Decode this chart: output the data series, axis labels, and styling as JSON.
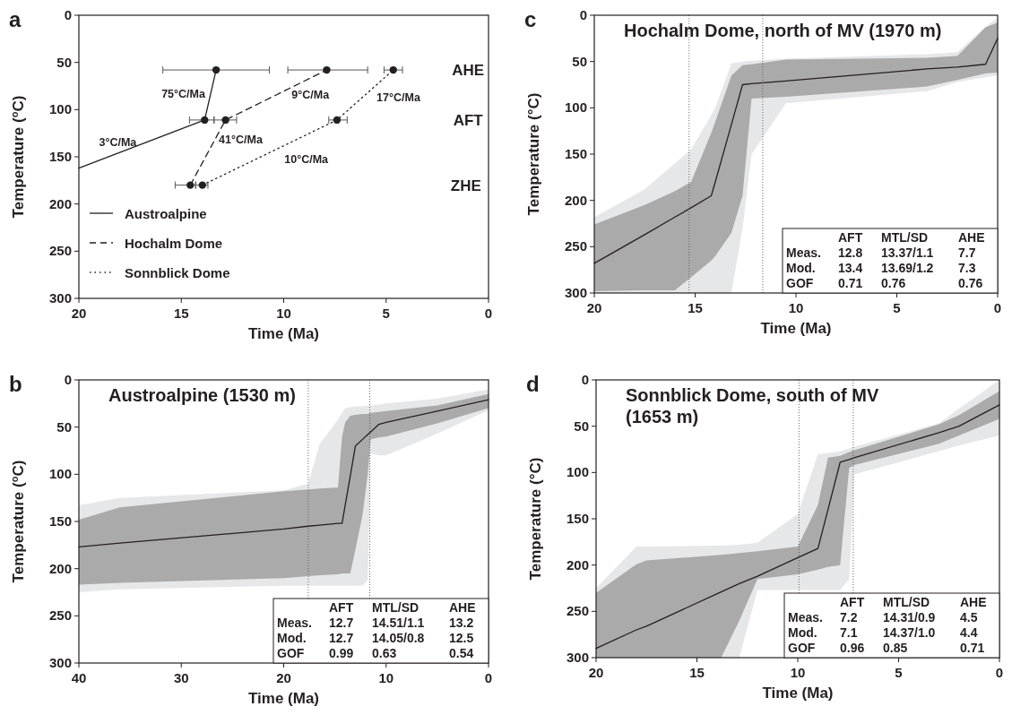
{
  "chart_data": [
    {
      "type": "line",
      "xlabel": "Time (Ma)",
      "ylabel": "Temperature ($^{o}$C)",
      "xlim": [
        20,
        0
      ],
      "ylim": [
        300,
        0
      ],
      "xticks": [
        20,
        15,
        10,
        5,
        0
      ],
      "yticks": [
        0,
        50,
        100,
        150,
        200,
        250,
        300
      ],
      "legend": "bottom left",
      "series": [
        {
          "name": "Austroalpine",
          "type": "line",
          "line_style": "solid",
          "color": "#231f20",
          "x": [
            20,
            13.86,
            13.3
          ],
          "values": [
            162,
            111,
            58
          ]
        },
        {
          "name": "Hochalm Dome",
          "type": "line",
          "line_style": "dashed",
          "color": "#231f20",
          "x": [
            14.56,
            12.84,
            7.9
          ],
          "values": [
            180,
            111,
            58
          ]
        },
        {
          "name": "Sonnblick Dome",
          "type": "line",
          "line_style": "dotted",
          "color": "#231f20",
          "x": [
            13.97,
            7.4,
            4.65
          ],
          "values": [
            180,
            111,
            58
          ]
        },
        {
          "type": "scatter",
          "marker": "circle",
          "color": "#231f20",
          "x": [
            13.3,
            7.9,
            4.65,
            13.86,
            12.84,
            7.4,
            14.56,
            13.97
          ],
          "values": [
            58,
            58,
            58,
            111,
            111,
            111,
            180,
            180
          ],
          "xerrors": [
            [
              10.7,
              15.9
            ],
            [
              5.9,
              9.8
            ],
            [
              4.2,
              5.1
            ],
            [
              13.4,
              14.6
            ],
            [
              12.3,
              13.4
            ],
            [
              6.9,
              7.8
            ],
            [
              14.3,
              15.3
            ],
            [
              13.7,
              14.3
            ]
          ]
        }
      ],
      "annotations": [
        "a",
        "75°C/Ma",
        "9°C/Ma",
        "17°C/Ma",
        "3°C/Ma",
        "41°C/Ma",
        "10°C/Ma",
        "AHE",
        "AFT",
        "ZHE"
      ]
    },
    {
      "type": "line",
      "title": "Hochalm Dome, north of MV (1970 m)",
      "xlabel": "Time (Ma)",
      "ylabel": "Temperature (°C)",
      "xlim": [
        20,
        0
      ],
      "ylim": [
        300,
        0
      ],
      "xticks": [
        20,
        15,
        10,
        5,
        0
      ],
      "yticks": [
        0,
        50,
        100,
        150,
        200,
        250,
        300
      ],
      "x": [
        20,
        17.5,
        16,
        15.2,
        14.2,
        14,
        13.2,
        12.65,
        12.2,
        10.5,
        3.5,
        2,
        0.6,
        0
      ],
      "series": [
        {
          "color": "#e6e7e8",
          "values": [
            null,
            null,
            null,
            null,
            null,
            null,
            null,
            null,
            null,
            null,
            null,
            null,
            null,
            null
          ],
          "lower": [
            218,
            188,
            160,
            145,
            108,
            100,
            52,
            50,
            49,
            47,
            42,
            40,
            12,
            3
          ],
          "upper": [
            300,
            300,
            300,
            300,
            300,
            300,
            300,
            230,
            150,
            95,
            82,
            72,
            67,
            65
          ]
        },
        {
          "color": "#231f20",
          "values": [
            268,
            237,
            218,
            208,
            195,
            180,
            118,
            75,
            74,
            71,
            58,
            56,
            53,
            25
          ],
          "lower": [
            226,
            205,
            190,
            180,
            127,
            115,
            65,
            54,
            53,
            48,
            46,
            44,
            13,
            8
          ],
          "upper": [
            298,
            297,
            297,
            283,
            265,
            260,
            235,
            195,
            90,
            88,
            77,
            70,
            63,
            62
          ]
        }
      ],
      "ref_lines": [
        {
          "axis": "x",
          "value": 15.3,
          "color": "#555555",
          "line_style": "dotted"
        },
        {
          "axis": "x",
          "value": 11.65,
          "color": "#555555",
          "line_style": "dotted"
        }
      ],
      "annotations": [
        "c",
        "AFT",
        "MTL/SD",
        "AHE",
        "Meas.",
        "12.8",
        "13.37/1.1",
        "7.7",
        "Mod.",
        "13.4",
        "13.69/1.2",
        "7.3",
        "GOF",
        "0.71",
        "0.76",
        "0.76"
      ]
    },
    {
      "type": "line",
      "title": "Austroalpine (1530 m)",
      "xlabel": "Time (Ma)",
      "ylabel": "Temperature ($^{o}$C)",
      "xlim": [
        40,
        0
      ],
      "ylim": [
        300,
        0
      ],
      "xticks": [
        40,
        30,
        20,
        10,
        0
      ],
      "yticks": [
        0,
        50,
        100,
        150,
        200,
        250,
        300
      ],
      "x": [
        40,
        36,
        20,
        17.6,
        16.5,
        14.7,
        14.3,
        14,
        13.5,
        13,
        12.3,
        11.8,
        11.5,
        10.7,
        10,
        5,
        0
      ],
      "series": [
        {
          "color": "#e6e7e8",
          "values": [
            null,
            null,
            null,
            null,
            null,
            null,
            null,
            null,
            null,
            null,
            null,
            null,
            null,
            null,
            null,
            null,
            null
          ],
          "lower": [
            133,
            125,
            117,
            110,
            68,
            42,
            35,
            30,
            29,
            28,
            28,
            27,
            27,
            26,
            25,
            20,
            10
          ],
          "upper": [
            225,
            222,
            218,
            218,
            218,
            218,
            218,
            218,
            218,
            218,
            218,
            212,
            78,
            80,
            80,
            57,
            32
          ]
        },
        {
          "color": "#231f20",
          "values": [
            177,
            173,
            158,
            155,
            154,
            152,
            152,
            133,
            102,
            70,
            63,
            58,
            55,
            47,
            45,
            33,
            21
          ],
          "lower": [
            148,
            135,
            118,
            116,
            115,
            114,
            60,
            45,
            38,
            37,
            36,
            36,
            35,
            34,
            33,
            27,
            15
          ],
          "upper": [
            217,
            215,
            210,
            208,
            207,
            206,
            205,
            205,
            205,
            180,
            143,
            100,
            63,
            61,
            60,
            46,
            30
          ]
        }
      ],
      "ref_lines": [
        {
          "axis": "x",
          "value": 17.6,
          "color": "#555555",
          "line_style": "dotted"
        },
        {
          "axis": "x",
          "value": 11.6,
          "color": "#555555",
          "line_style": "dotted"
        }
      ],
      "annotations": [
        "b",
        "AFT",
        "MTL/SD",
        "AHE",
        "Meas.",
        "12.7",
        "14.51/1.1",
        "13.2",
        "Mod.",
        "12.7",
        "14.05/0.8",
        "12.5",
        "GOF",
        "0.99",
        "0.63",
        "0.54"
      ]
    },
    {
      "type": "line",
      "title": "Sonnblick Dome, south of MV (1653 m)",
      "xlabel": "Time (Ma)",
      "ylabel": "Temperature (°C)",
      "xlim": [
        20,
        0
      ],
      "ylim": [
        300,
        0
      ],
      "xticks": [
        20,
        15,
        10,
        5,
        0
      ],
      "yticks": [
        0,
        50,
        100,
        150,
        200,
        250,
        300
      ],
      "x": [
        20,
        18,
        17.5,
        13.8,
        12.9,
        12,
        10,
        9,
        8.5,
        7.9,
        7.45,
        7.2,
        3,
        2,
        0
      ],
      "series": [
        {
          "color": "#e6e7e8",
          "values": [
            null,
            null,
            null,
            null,
            null,
            null,
            null,
            null,
            null,
            null,
            null,
            null,
            null,
            null,
            null
          ],
          "lower": [
            225,
            180,
            180,
            179,
            178,
            176,
            145,
            80,
            79,
            77,
            74,
            72,
            47,
            31,
            0
          ],
          "upper": [
            300,
            300,
            300,
            300,
            300,
            227,
            227,
            227,
            227,
            227,
            215,
            102,
            77,
            71,
            60
          ]
        },
        {
          "color": "#231f20",
          "values": [
            290,
            270,
            266,
            229,
            220,
            212,
            192,
            182,
            140,
            89,
            86,
            84,
            57,
            50,
            27
          ],
          "lower": [
            230,
            199,
            195,
            189,
            187,
            185,
            180,
            135,
            84,
            82,
            78,
            76,
            48,
            38,
            12
          ],
          "upper": [
            300,
            300,
            300,
            300,
            260,
            215,
            210,
            205,
            202,
            200,
            95,
            92,
            69,
            60,
            42
          ]
        }
      ],
      "ref_lines": [
        {
          "axis": "x",
          "value": 9.94,
          "color": "#555555",
          "line_style": "dotted"
        },
        {
          "axis": "x",
          "value": 7.25,
          "color": "#555555",
          "line_style": "dotted"
        }
      ],
      "annotations": [
        "d",
        "AFT",
        "MTL/SD",
        "AHE",
        "Meas.",
        "7.2",
        "14.31/0.9",
        "4.5",
        "Mod.",
        "7.1",
        "14.37/1.0",
        "4.4",
        "GOF",
        "0.96",
        "0.85",
        "0.71"
      ]
    }
  ]
}
